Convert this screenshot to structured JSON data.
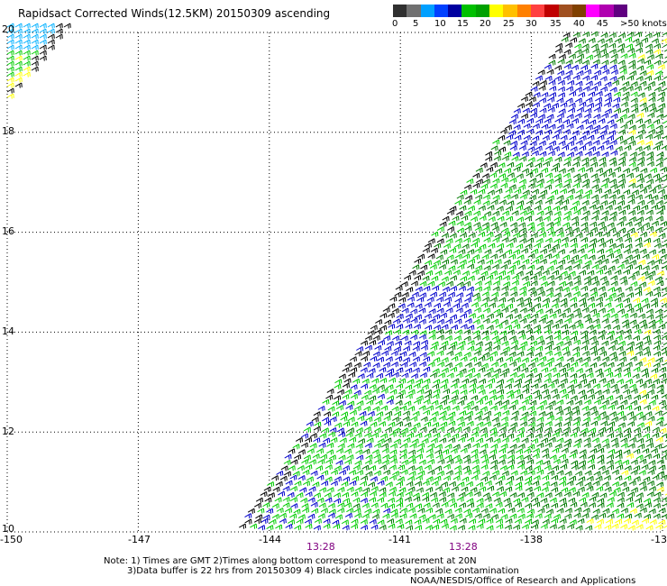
{
  "title": "Rapidsact Corrected Winds(12.5KM) 20150309 ascending",
  "legend": {
    "colors": [
      "#303030",
      "#707070",
      "#00a0ff",
      "#0040ff",
      "#0000a0",
      "#00c000",
      "#00a000",
      "#ffff00",
      "#ffc000",
      "#ff8000",
      "#ff4040",
      "#c00000",
      "#a05020",
      "#804000",
      "#ff00ff",
      "#b000b0",
      "#600080"
    ],
    "labels": [
      "0",
      "5",
      "10",
      "15",
      "20",
      "25",
      "30",
      "35",
      "40",
      "45",
      ">50 knots"
    ],
    "speed_bands": [
      {
        "min": 0,
        "max": 5,
        "color": "#000000"
      },
      {
        "min": 5,
        "max": 10,
        "color": "#00b0ff"
      },
      {
        "min": 10,
        "max": 15,
        "color": "#0000cc"
      },
      {
        "min": 15,
        "max": 20,
        "color": "#00cc00"
      },
      {
        "min": 20,
        "max": 25,
        "color": "#007a00"
      },
      {
        "min": 25,
        "max": 30,
        "color": "#ffff00"
      }
    ]
  },
  "axes": {
    "lon_labels": [
      "-150",
      "-147",
      "-144",
      "-141",
      "-138",
      "-13"
    ],
    "lat_labels": [
      "20",
      "18",
      "16",
      "14",
      "12",
      "10"
    ],
    "lon_range": [
      -150,
      -135
    ],
    "lat_range": [
      10,
      20
    ]
  },
  "swath": {
    "times": [
      "13:28",
      "13:28"
    ],
    "pass": "ascending",
    "date": "20150309"
  },
  "notes": {
    "line1": "Note: 1) Times are GMT 2)Times along bottom correspond to measurement at 20N",
    "line2": "3)Data buffer is 22 hrs from 20150309 4) Black circles indicate possible contamination"
  },
  "credit": "NOAA/NESDIS/Office of Research and Applications"
}
